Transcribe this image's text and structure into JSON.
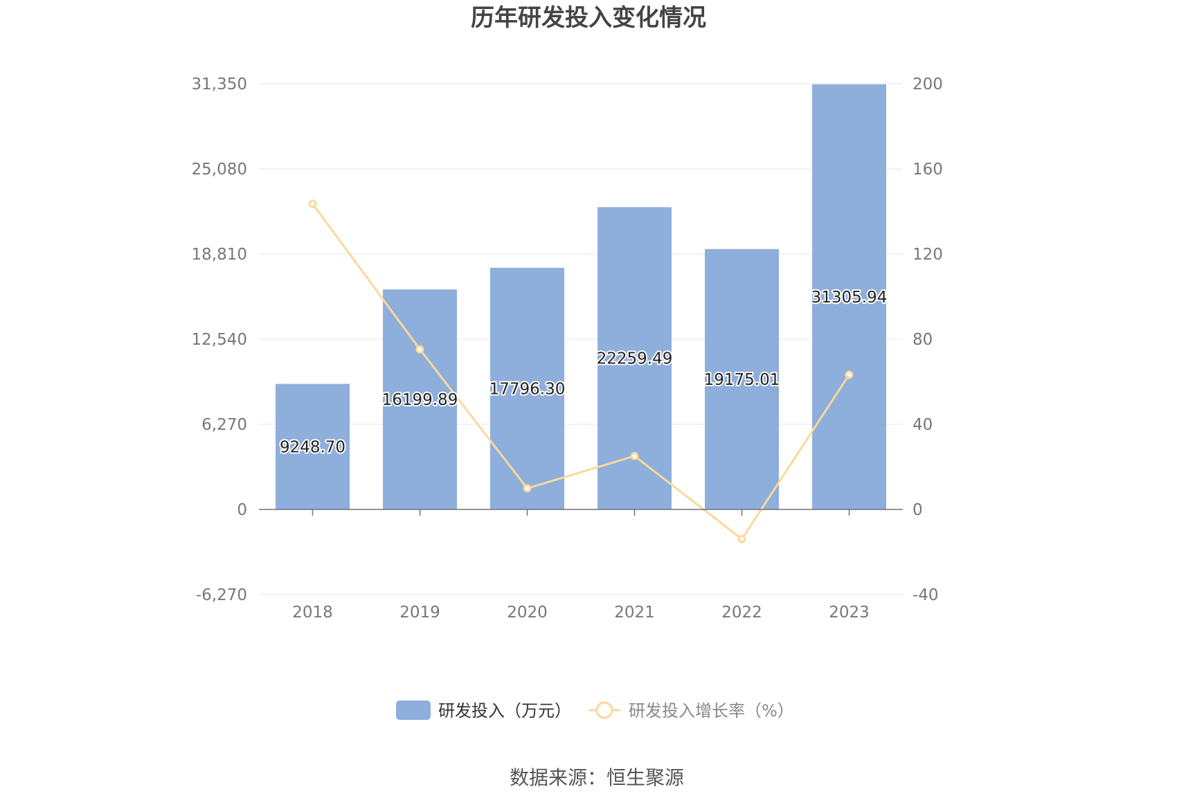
{
  "chart_data": {
    "type": "bar",
    "title": "历年研发投入变化情况",
    "categories": [
      "2018",
      "2019",
      "2020",
      "2021",
      "2022",
      "2023"
    ],
    "series": [
      {
        "name": "研发投入（万元）",
        "type": "bar",
        "axis": "left",
        "values": [
          9248.7,
          16199.89,
          17796.3,
          22259.49,
          19175.01,
          31305.94
        ],
        "labels": [
          "9248.70",
          "16199.89",
          "17796.30",
          "22259.49",
          "19175.01",
          "31305.94"
        ],
        "color": "#8eaedb"
      },
      {
        "name": "研发投入增长率（%）",
        "type": "line",
        "axis": "right",
        "values": [
          143.6,
          75.2,
          9.9,
          25.1,
          -13.9,
          63.3
        ],
        "color": "#fbd99a"
      }
    ],
    "y_left": {
      "ticks": [
        "31,350",
        "25,080",
        "18,810",
        "12,540",
        "6,270",
        "0",
        "-6,270"
      ],
      "ylim": [
        -6270,
        31350
      ]
    },
    "y_right": {
      "ticks": [
        "200",
        "160",
        "120",
        "80",
        "40",
        "0",
        "-40"
      ],
      "ylim": [
        -40,
        200
      ]
    },
    "grid": true,
    "legend_position": "bottom",
    "source": "数据来源：恒生聚源"
  }
}
